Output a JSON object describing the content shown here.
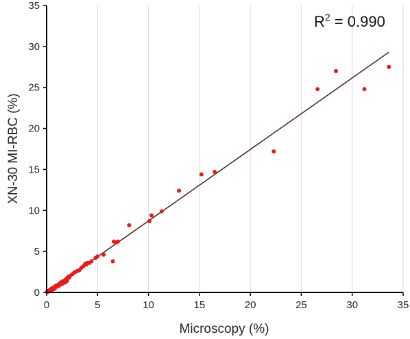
{
  "chart_data": {
    "type": "scatter",
    "xlabel": "Microscopy (%)",
    "ylabel": "XN-30 MI-RBC (%)",
    "xlim": [
      0,
      35
    ],
    "ylim": [
      0,
      35
    ],
    "xticks": [
      "0",
      "5",
      "10",
      "15",
      "20",
      "25",
      "30",
      "35"
    ],
    "yticks": [
      "0",
      "5",
      "10",
      "15",
      "20",
      "25",
      "30",
      "35"
    ],
    "grid": "vertical",
    "annotation": {
      "prefix": "R",
      "sup": "2",
      "suffix": " = 0.990"
    },
    "colors": {
      "points": "#e8191b",
      "trendline": "#4a2b20",
      "grid": "#d9d9d9",
      "axis": "#000000"
    },
    "trendline": {
      "x": [
        0,
        33.6
      ],
      "y": [
        0,
        29.3
      ]
    },
    "points": {
      "x": [
        0.05,
        0.1,
        0.15,
        0.2,
        0.25,
        0.3,
        0.35,
        0.4,
        0.5,
        0.6,
        0.7,
        0.8,
        0.9,
        1.0,
        1.1,
        1.2,
        1.3,
        1.4,
        1.5,
        1.6,
        1.7,
        1.8,
        1.9,
        2.0,
        2.1,
        2.2,
        2.3,
        2.5,
        2.7,
        2.8,
        3.0,
        3.2,
        3.4,
        3.6,
        3.8,
        3.9,
        4.0,
        4.2,
        4.4,
        4.8,
        5.0,
        5.6,
        6.5,
        6.6,
        6.8,
        7.0,
        8.1,
        10.1,
        10.3,
        11.3,
        13.0,
        15.2,
        16.5,
        22.3,
        26.6,
        28.4,
        31.2,
        33.6,
        0.2,
        0.4,
        0.5,
        0.7,
        1.0,
        1.5,
        2.0,
        0.8,
        1.2,
        1.8
      ],
      "y": [
        0.05,
        0.1,
        0.1,
        0.2,
        0.2,
        0.3,
        0.3,
        0.3,
        0.5,
        0.5,
        0.6,
        0.7,
        0.8,
        0.8,
        0.9,
        1.0,
        1.1,
        1.2,
        1.3,
        1.3,
        1.4,
        1.5,
        1.6,
        1.7,
        1.9,
        1.8,
        2.0,
        2.2,
        2.4,
        2.5,
        2.6,
        2.7,
        3.0,
        3.2,
        3.5,
        3.4,
        3.6,
        3.6,
        3.8,
        4.2,
        4.4,
        4.6,
        3.8,
        6.2,
        6.1,
        6.2,
        8.2,
        8.7,
        9.4,
        9.9,
        12.4,
        14.4,
        14.7,
        17.2,
        24.8,
        27.0,
        24.8,
        27.5,
        0.1,
        0.2,
        0.3,
        0.4,
        0.7,
        1.0,
        1.4,
        0.5,
        0.8,
        1.2
      ]
    }
  }
}
